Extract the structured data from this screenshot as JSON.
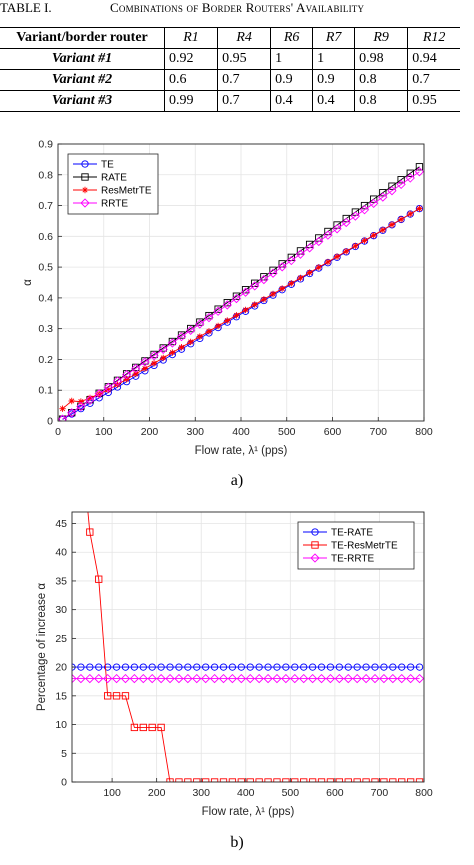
{
  "table": {
    "caption_number": "TABLE I.",
    "caption_title": "Combinations of Border Routers' Availability",
    "header": [
      "Variant/border router",
      "R1",
      "R4",
      "R6",
      "R7",
      "R9",
      "R12"
    ],
    "rows": [
      [
        "Variant #1",
        "0.92",
        "0.95",
        "1",
        "1",
        "0.98",
        "0.94"
      ],
      [
        "Variant #2",
        "0.6",
        "0.7",
        "0.9",
        "0.9",
        "0.8",
        "0.7"
      ],
      [
        "Variant #3",
        "0.99",
        "0.7",
        "0.4",
        "0.4",
        "0.8",
        "0.95"
      ]
    ]
  },
  "chart_data": [
    {
      "type": "line",
      "subfigure_label": "a)",
      "xlabel": "Flow rate, λ¹ (pps)",
      "ylabel": "α",
      "xlim": [
        0,
        800
      ],
      "ylim": [
        0,
        0.9
      ],
      "xticks": [
        0,
        100,
        200,
        300,
        400,
        500,
        600,
        700,
        800
      ],
      "yticks": [
        0,
        0.1,
        0.2,
        0.3,
        0.4,
        0.5,
        0.6,
        0.7,
        0.8,
        0.9
      ],
      "grid": true,
      "legend_position": "top-left",
      "series": [
        {
          "name": "TE",
          "color": "#0000ff",
          "marker": "circle",
          "x": [
            10,
            790
          ],
          "y": [
            0.005,
            0.69
          ]
        },
        {
          "name": "RATE",
          "color": "#000000",
          "marker": "square",
          "x": [
            10,
            790
          ],
          "y": [
            0.006,
            0.826
          ]
        },
        {
          "name": "ResMetrTE",
          "color": "#ff0000",
          "marker": "asterisk",
          "x": [
            10,
            30,
            50,
            70,
            90,
            110,
            790
          ],
          "y": [
            0.04,
            0.065,
            0.063,
            0.075,
            0.088,
            0.101,
            0.69
          ]
        },
        {
          "name": "RRTE",
          "color": "#ff00ff",
          "marker": "diamond",
          "x": [
            10,
            790
          ],
          "y": [
            0.006,
            0.81
          ]
        }
      ]
    },
    {
      "type": "line",
      "subfigure_label": "b)",
      "xlabel": "Flow rate, λ¹ (pps)",
      "ylabel": "Percentage of increase α",
      "xlim": [
        10,
        800
      ],
      "ylim": [
        0,
        47
      ],
      "xticks": [
        100,
        200,
        300,
        400,
        500,
        600,
        700,
        800
      ],
      "yticks": [
        0,
        5,
        10,
        15,
        20,
        25,
        30,
        35,
        40,
        45
      ],
      "grid": true,
      "legend_position": "top-right",
      "series": [
        {
          "name": "TE-RATE",
          "color": "#0000ff",
          "marker": "circle",
          "x": [
            10,
            790
          ],
          "y": [
            20,
            20
          ]
        },
        {
          "name": "TE-ResMetrTE",
          "color": "#ff0000",
          "marker": "square",
          "x": [
            30,
            50,
            70,
            90,
            110,
            130,
            150,
            170,
            190,
            210,
            230,
            790
          ],
          "y": [
            60,
            43.5,
            35.3,
            15,
            15,
            15,
            9.5,
            9.5,
            9.5,
            9.5,
            0,
            0
          ]
        },
        {
          "name": "TE-RRTE",
          "color": "#ff00ff",
          "marker": "diamond",
          "x": [
            10,
            790
          ],
          "y": [
            18,
            18
          ]
        }
      ]
    }
  ]
}
